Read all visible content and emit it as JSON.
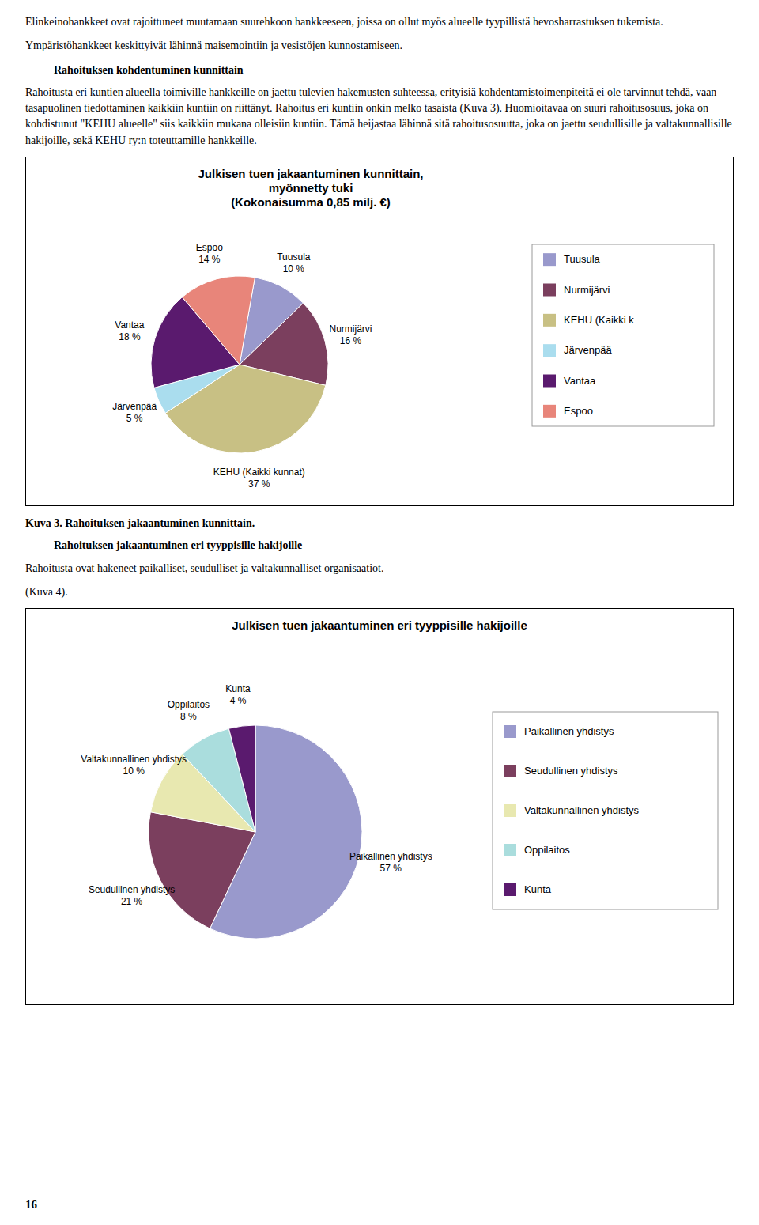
{
  "intro_text": [
    {
      "type": "paragraph",
      "text": "Elinkeinohankkeet ovat rajoittuneet muutamaan suurehkoon hankkeeseen, joissa on ollut myös alueelle tyypillistä hevosharrastuksen tukemista."
    },
    {
      "type": "paragraph",
      "text": "Ympäristöhankkeet keskittyivät lähinnä maisemointiin ja vesistöjen kunnostamiseen."
    },
    {
      "type": "heading",
      "text": "Rahoituksen kohdentuminen kunnittain"
    },
    {
      "type": "paragraph",
      "text": "Rahoitusta eri kuntien alueella toimiville hankkeille on jaettu tulevien hakemusten suhteessa, erityisiä kohdentamistoimenpiteitä ei ole tarvinnut tehdä, vaan tasapuolinen tiedottaminen kaikkiin kuntiin on riittänyt. Rahoitus eri kuntiin onkin melko tasaista (Kuva 3). Huomioitavaa on suuri rahoitusosuus, joka on kohdistunut \"KEHU alueelle\" siis kaikkiin mukana olleisiin kuntiin. Tämä heijastaa lähinnä sitä rahoitusosuutta, joka on jaettu seudullisille ja valtakunnallisille hakijoille, sekä KEHU ry:n toteuttamille hankkeille."
    }
  ],
  "middle_text": [
    {
      "type": "caption",
      "text": "Kuva 3. Rahoituksen jakaantuminen kunnittain."
    },
    {
      "type": "heading",
      "text": "Rahoituksen jakaantuminen eri tyyppisille hakijoille"
    },
    {
      "type": "paragraph",
      "text": "Rahoitusta ovat hakeneet paikalliset, seudulliset ja valtakunnalliset organisaatiot."
    },
    {
      "type": "paragraph",
      "text": "(Kuva 4)."
    }
  ],
  "page_number": "16",
  "chart_data": [
    {
      "type": "pie",
      "title": "Julkisen tuen jakaantuminen kunnittain,\nmyönnetty tuki\n(Kokonaisumma 0,85 milj. €)",
      "categories": [
        "Tuusula",
        "Nurmijärvi",
        "KEHU (Kaikki kunnat)",
        "Järvenpää",
        "Vantaa",
        "Espoo"
      ],
      "values": [
        10,
        16,
        37,
        5,
        18,
        14
      ],
      "value_labels": [
        "10 %",
        "16 %",
        "37 %",
        "5 %",
        "18 %",
        "14 %"
      ],
      "data_labels": true,
      "colors": [
        "#9999cc",
        "#7b3f5e",
        "#c8c084",
        "#aaddee",
        "#5a1a6e",
        "#e8857a"
      ],
      "legend": "right",
      "legend_labels": [
        "Tuusula",
        "Nurmijärvi",
        "KEHU (Kaikki k",
        "Järvenpää",
        "Vantaa",
        "Espoo"
      ]
    },
    {
      "type": "pie",
      "title": "Julkisen tuen jakaantuminen eri tyyppisille hakijoille",
      "categories": [
        "Paikallinen yhdistys",
        "Seudullinen yhdistys",
        "Valtakunnallinen yhdistys",
        "Oppilaitos",
        "Kunta"
      ],
      "values": [
        57,
        21,
        10,
        8,
        4
      ],
      "value_labels": [
        "57 %",
        "21 %",
        "10 %",
        "8 %",
        "4 %"
      ],
      "data_labels": true,
      "colors": [
        "#9999cc",
        "#7b3f5e",
        "#e8e8b0",
        "#aadddd",
        "#5a1a6e"
      ],
      "legend": "right",
      "legend_labels": [
        "Paikallinen yhdistys",
        "Seudullinen yhdistys",
        "Valtakunnallinen yhdistys",
        "Oppilaitos",
        "Kunta"
      ]
    }
  ]
}
